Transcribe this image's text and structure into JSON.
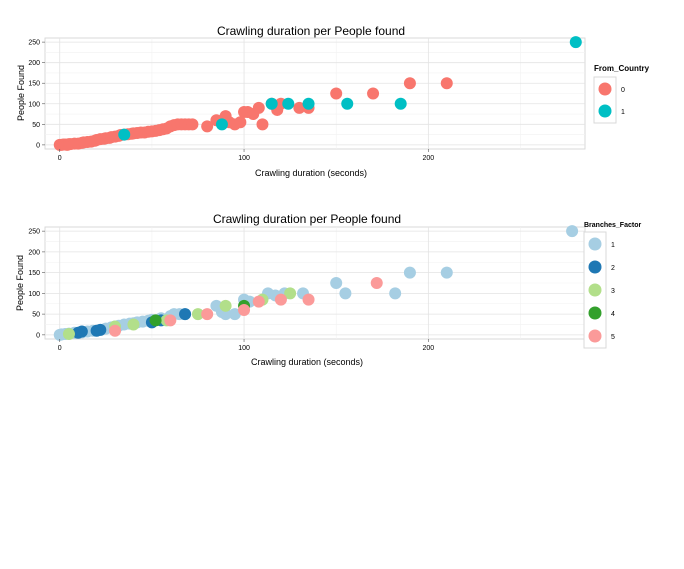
{
  "chart_data": [
    {
      "type": "scatter",
      "title": "Crawling duration per People found",
      "xlabel": "Crawling duration (seconds)",
      "ylabel": "People Found",
      "xlim": [
        -8,
        285
      ],
      "ylim": [
        -10,
        260
      ],
      "xticks": [
        0,
        100,
        200
      ],
      "yticks": [
        0,
        50,
        100,
        150,
        200,
        250
      ],
      "grid": true,
      "legend_position": "right",
      "legend_title": "From_Country",
      "series": [
        {
          "name": "0",
          "color": "#F8766D",
          "points": [
            [
              0,
              0
            ],
            [
              1,
              0
            ],
            [
              2,
              1
            ],
            [
              3,
              1
            ],
            [
              4,
              0
            ],
            [
              5,
              2
            ],
            [
              6,
              2
            ],
            [
              8,
              3
            ],
            [
              10,
              3
            ],
            [
              12,
              5
            ],
            [
              13,
              6
            ],
            [
              15,
              7
            ],
            [
              17,
              8
            ],
            [
              19,
              10
            ],
            [
              20,
              12
            ],
            [
              22,
              14
            ],
            [
              24,
              15
            ],
            [
              25,
              16
            ],
            [
              27,
              17
            ],
            [
              28,
              19
            ],
            [
              30,
              20
            ],
            [
              32,
              22
            ],
            [
              33,
              24
            ],
            [
              35,
              25
            ],
            [
              37,
              26
            ],
            [
              39,
              27
            ],
            [
              40,
              28
            ],
            [
              42,
              29
            ],
            [
              44,
              30
            ],
            [
              46,
              30
            ],
            [
              48,
              32
            ],
            [
              50,
              33
            ],
            [
              52,
              34
            ],
            [
              54,
              36
            ],
            [
              56,
              38
            ],
            [
              58,
              40
            ],
            [
              60,
              45
            ],
            [
              62,
              48
            ],
            [
              64,
              50
            ],
            [
              66,
              50
            ],
            [
              68,
              50
            ],
            [
              70,
              50
            ],
            [
              72,
              50
            ],
            [
              80,
              45
            ],
            [
              85,
              60
            ],
            [
              90,
              70
            ],
            [
              92,
              55
            ],
            [
              95,
              50
            ],
            [
              98,
              55
            ],
            [
              100,
              80
            ],
            [
              102,
              80
            ],
            [
              105,
              75
            ],
            [
              108,
              90
            ],
            [
              110,
              50
            ],
            [
              115,
              100
            ],
            [
              118,
              85
            ],
            [
              120,
              100
            ],
            [
              130,
              90
            ],
            [
              135,
              90
            ],
            [
              150,
              125
            ],
            [
              170,
              125
            ],
            [
              190,
              150
            ],
            [
              210,
              150
            ]
          ]
        },
        {
          "name": "1",
          "color": "#00BFC4",
          "points": [
            [
              35,
              25
            ],
            [
              88,
              50
            ],
            [
              115,
              100
            ],
            [
              124,
              100
            ],
            [
              135,
              100
            ],
            [
              156,
              100
            ],
            [
              185,
              100
            ],
            [
              280,
              250
            ]
          ]
        }
      ]
    },
    {
      "type": "scatter",
      "title": "Crawling duration per People found",
      "xlabel": "Crawling duration (seconds)",
      "ylabel": "People Found",
      "xlim": [
        -8,
        285
      ],
      "ylim": [
        -10,
        260
      ],
      "xticks": [
        0,
        100,
        200
      ],
      "yticks": [
        0,
        50,
        100,
        150,
        200,
        250
      ],
      "grid": true,
      "legend_position": "right",
      "legend_title": "Branches_Factor",
      "series": [
        {
          "name": "1",
          "color": "#A6CEE3",
          "points": [
            [
              0,
              0
            ],
            [
              1,
              1
            ],
            [
              3,
              2
            ],
            [
              5,
              3
            ],
            [
              8,
              5
            ],
            [
              12,
              6
            ],
            [
              15,
              8
            ],
            [
              18,
              10
            ],
            [
              22,
              12
            ],
            [
              25,
              15
            ],
            [
              28,
              18
            ],
            [
              30,
              20
            ],
            [
              32,
              22
            ],
            [
              35,
              25
            ],
            [
              38,
              27
            ],
            [
              40,
              28
            ],
            [
              42,
              30
            ],
            [
              45,
              32
            ],
            [
              48,
              34
            ],
            [
              50,
              36
            ],
            [
              55,
              40
            ],
            [
              60,
              45
            ],
            [
              62,
              50
            ],
            [
              65,
              50
            ],
            [
              68,
              50
            ],
            [
              85,
              70
            ],
            [
              88,
              55
            ],
            [
              90,
              50
            ],
            [
              95,
              50
            ],
            [
              100,
              85
            ],
            [
              103,
              80
            ],
            [
              113,
              100
            ],
            [
              117,
              95
            ],
            [
              122,
              100
            ],
            [
              132,
              100
            ],
            [
              150,
              125
            ],
            [
              155,
              100
            ],
            [
              182,
              100
            ],
            [
              190,
              150
            ],
            [
              210,
              150
            ],
            [
              278,
              250
            ]
          ]
        },
        {
          "name": "2",
          "color": "#1F78B4",
          "points": [
            [
              10,
              5
            ],
            [
              12,
              8
            ],
            [
              20,
              10
            ],
            [
              22,
              12
            ],
            [
              50,
              30
            ],
            [
              55,
              35
            ],
            [
              68,
              50
            ]
          ]
        },
        {
          "name": "3",
          "color": "#B2DF8A",
          "points": [
            [
              5,
              2
            ],
            [
              30,
              20
            ],
            [
              40,
              25
            ],
            [
              58,
              35
            ],
            [
              75,
              50
            ],
            [
              90,
              70
            ],
            [
              110,
              85
            ],
            [
              125,
              100
            ]
          ]
        },
        {
          "name": "4",
          "color": "#33A02C",
          "points": [
            [
              52,
              35
            ],
            [
              100,
              70
            ]
          ]
        },
        {
          "name": "5",
          "color": "#FB9A99",
          "points": [
            [
              30,
              10
            ],
            [
              60,
              35
            ],
            [
              80,
              50
            ],
            [
              100,
              60
            ],
            [
              108,
              80
            ],
            [
              120,
              85
            ],
            [
              135,
              85
            ],
            [
              172,
              125
            ]
          ]
        }
      ]
    }
  ]
}
